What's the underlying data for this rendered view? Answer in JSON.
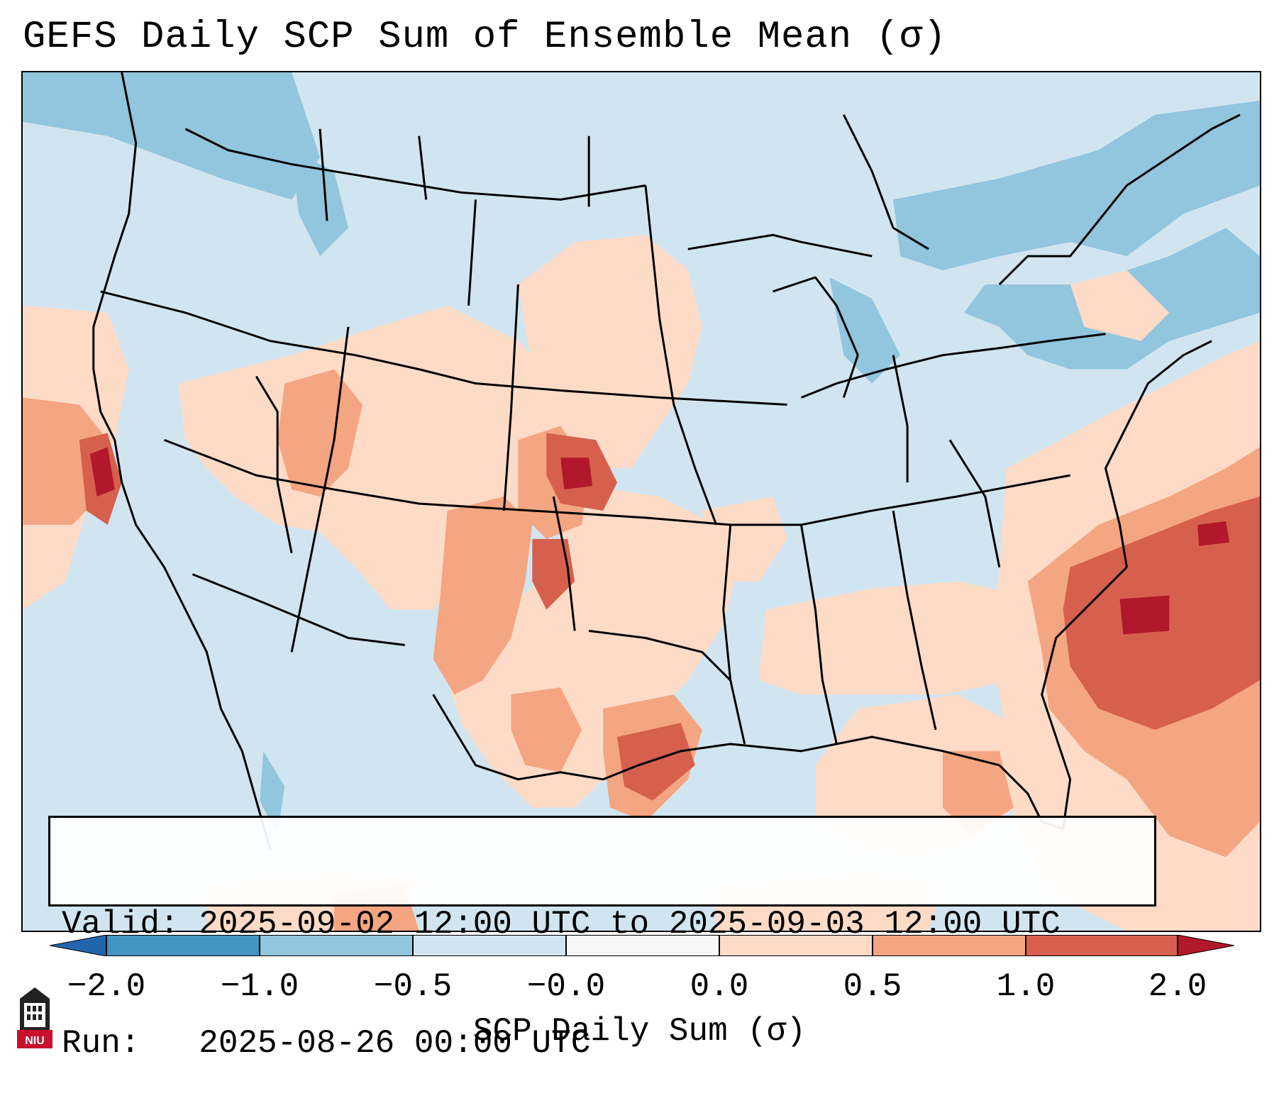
{
  "title": "GEFS Daily SCP Sum of Ensemble Mean (σ)",
  "info": {
    "valid_line": "Valid: 2025-09-02 12:00 UTC to 2025-09-03 12:00 UTC",
    "run_line": "Run:   2025-08-26 00:00 UTC"
  },
  "colorbar": {
    "label": "SCP Daily Sum (σ)",
    "ticks": [
      "−2.0",
      "−1.0",
      "−0.5",
      "−0.0",
      "0.0",
      "0.5",
      "1.0",
      "2.0"
    ],
    "levels": [
      {
        "range": "< -2.0",
        "color": "#2166ac"
      },
      {
        "range": "-2.0 to -1.0",
        "color": "#4393c3"
      },
      {
        "range": "-1.0 to -0.5",
        "color": "#92c5de"
      },
      {
        "range": "-0.5 to -0.0",
        "color": "#d1e5f0"
      },
      {
        "range": "-0.0 to 0.0",
        "color": "#f7f7f7"
      },
      {
        "range": "0.0 to 0.5",
        "color": "#fddbc7"
      },
      {
        "range": "0.5 to 1.0",
        "color": "#f4a582"
      },
      {
        "range": "1.0 to 2.0",
        "color": "#d6604d"
      },
      {
        "range": "> 2.0",
        "color": "#b2182b"
      }
    ]
  },
  "logo": {
    "text": "NIU",
    "icon": "university-tower-icon"
  }
}
